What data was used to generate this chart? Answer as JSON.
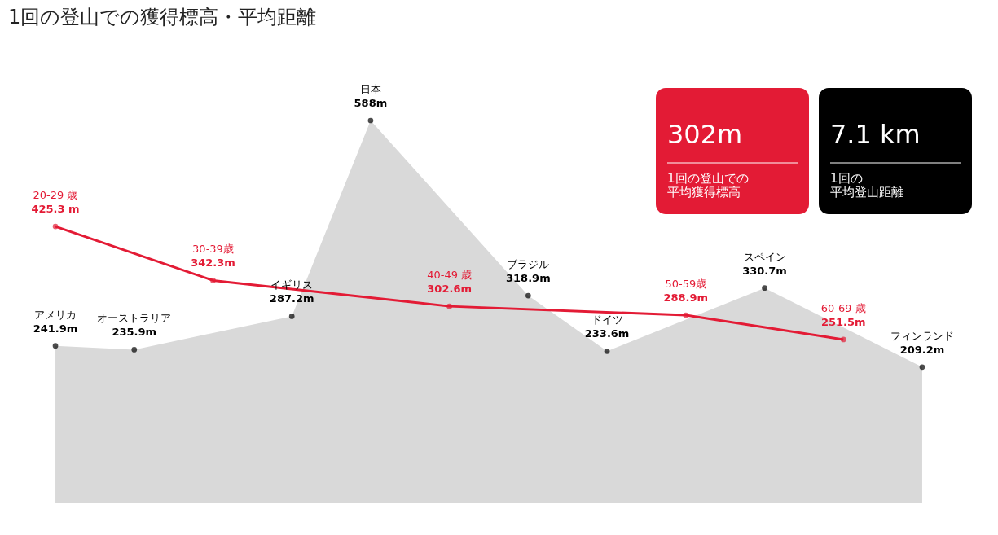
{
  "chart_data": {
    "type": "area",
    "title": "1回の登山での獲得標高・平均距離",
    "categories": [
      null,
      null,
      null,
      null,
      null,
      null,
      null,
      null,
      null,
      null,
      null,
      null
    ],
    "series": [
      {
        "color": "#d9d9d9",
        "values": [
          241.9,
          235.9,
          null,
          287.2,
          588,
          null,
          318.9,
          233.6,
          null,
          330.7,
          null,
          209.2
        ],
        "value_labels": [
          "241.9m",
          "235.9m",
          null,
          "287.2m",
          "588m",
          null,
          "318.9m",
          "233.6m",
          null,
          "330.7m",
          null,
          "209.2m"
        ]
      },
      {
        "type": "line",
        "color": "#e31b35",
        "values": [
          425.3,
          null,
          342.3,
          null,
          null,
          302.6,
          null,
          null,
          288.9,
          null,
          251.5,
          null
        ],
        "value_labels": [
          "425.3 m",
          null,
          "342.3m",
          null,
          null,
          "302.6m",
          null,
          null,
          "288.9m",
          null,
          "251.5m",
          null
        ]
      }
    ],
    "tick_labels": false,
    "grid": false,
    "marker": "circle",
    "annotations": [
      {
        "text": "アメリカ",
        "y": 241.9
      },
      {
        "text": "オーストラリア",
        "y": 235.9
      },
      {
        "text": "イギリス",
        "y": 287.2
      },
      {
        "text": "日本",
        "y": 588
      },
      {
        "text": "ブラジル",
        "y": 318.9
      },
      {
        "text": "ドイツ",
        "y": 233.6
      },
      {
        "text": "スペイン",
        "y": 330.7
      },
      {
        "text": "フィンランド",
        "y": 209.2
      },
      {
        "text": "20-29 歳",
        "y": 425.3
      },
      {
        "text": "30-39歳",
        "y": 342.3
      },
      {
        "text": "40-49 歳",
        "y": 302.6
      },
      {
        "text": "50-59歳",
        "y": 288.9
      },
      {
        "text": "60-69 歳",
        "y": 251.5
      },
      "302m",
      "1回の登山での平均獲得標高",
      "7.1 km",
      "1回の平均登山距離"
    ]
  }
}
